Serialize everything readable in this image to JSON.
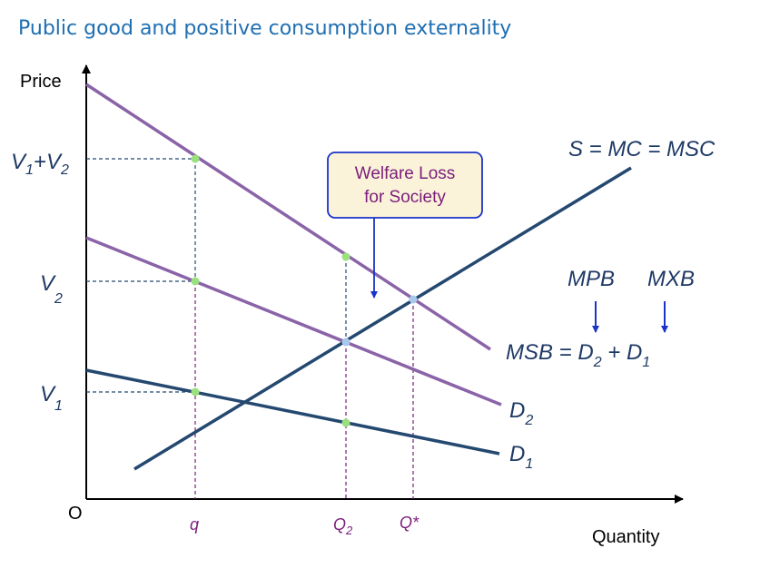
{
  "title": "Public good and positive consumption externality",
  "axes": {
    "y_label": "Price",
    "x_label": "Quantity",
    "origin_label": "O"
  },
  "price_labels": {
    "v1v2": {
      "a": "V",
      "a_sub": "1",
      "plus": "+V",
      "b_sub": "2"
    },
    "v2": {
      "main": "V",
      "sub": "2"
    },
    "v1": {
      "main": "V",
      "sub": "1"
    }
  },
  "quantity_labels": {
    "q": "q",
    "q2": {
      "main": "Q",
      "sub": "2"
    },
    "qstar": "Q*"
  },
  "curves": {
    "supply": "S = MC = MSC",
    "msb": {
      "a": "MSB = D",
      "a_sub": "2",
      "b": " + D",
      "b_sub": "1"
    },
    "d2": {
      "main": "D",
      "sub": "2"
    },
    "d1": {
      "main": "D",
      "sub": "1"
    }
  },
  "annotations": {
    "welfare_loss": {
      "line1": "Welfare Loss",
      "line2": "for Society"
    },
    "mpb": "MPB",
    "mxb": "MXB"
  },
  "colors": {
    "msb_line": "#8a63a8",
    "d2_line": "#8a63a8",
    "supply_line": "#24486f",
    "d1_line": "#24486f",
    "point_green": "#9be07f",
    "point_blue": "#a8c8ec",
    "title": "#1f6fb2",
    "box_border": "#1a33c8",
    "box_fill": "#fbf3d9",
    "arrow": "#1a33c8"
  }
}
